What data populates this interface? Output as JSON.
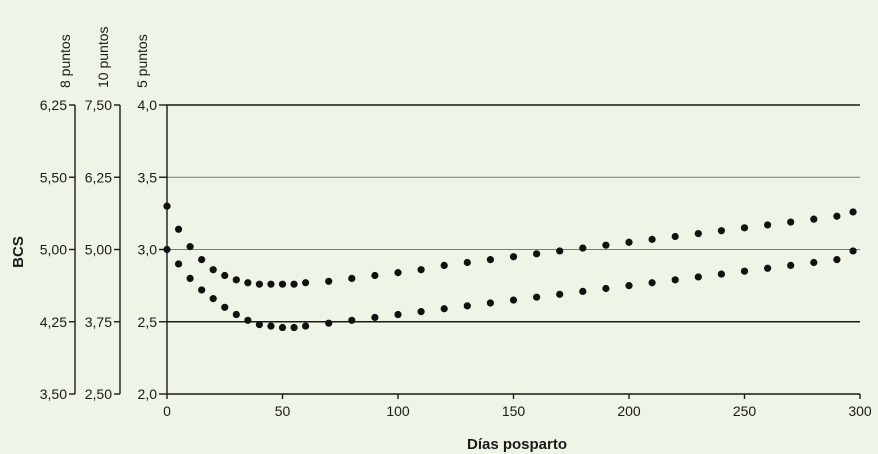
{
  "chart_data": {
    "type": "scatter",
    "xlabel": "Días posparto",
    "ylabel": "BCS",
    "xlim": [
      0,
      300
    ],
    "ylim": [
      2.0,
      4.0
    ],
    "x_ticks": [
      0,
      50,
      100,
      150,
      200,
      250,
      300
    ],
    "y_axes": [
      {
        "name": "5 puntos",
        "ticks": [
          "4,0",
          "3,5",
          "3,0",
          "2,5",
          "2,0"
        ]
      },
      {
        "name": "10 puntos",
        "ticks": [
          "7,50",
          "6,25",
          "5,00",
          "3,75",
          "2,50"
        ]
      },
      {
        "name": "8 puntos",
        "ticks": [
          "6,25",
          "5,50",
          "5,00",
          "4,25",
          "3,50"
        ]
      }
    ],
    "y_tick_values": [
      4.0,
      3.5,
      3.0,
      2.5,
      2.0
    ],
    "gridlines_y": [
      4.0,
      3.5,
      3.0,
      2.5
    ],
    "series": [
      {
        "x": [
          0,
          5,
          10,
          15,
          20,
          25,
          30,
          35,
          40,
          45,
          50,
          55,
          60,
          70,
          80,
          90,
          100,
          110,
          120,
          130,
          140,
          150,
          160,
          170,
          180,
          190,
          200,
          210,
          220,
          230,
          240,
          250,
          260,
          270,
          280,
          290,
          297
        ],
        "y": [
          3.3,
          3.14,
          3.02,
          2.93,
          2.86,
          2.82,
          2.79,
          2.77,
          2.76,
          2.76,
          2.76,
          2.76,
          2.77,
          2.78,
          2.8,
          2.82,
          2.84,
          2.86,
          2.89,
          2.91,
          2.93,
          2.95,
          2.97,
          2.99,
          3.01,
          3.03,
          3.05,
          3.07,
          3.09,
          3.11,
          3.13,
          3.15,
          3.17,
          3.19,
          3.21,
          3.23,
          3.26
        ]
      },
      {
        "x": [
          0,
          5,
          10,
          15,
          20,
          25,
          30,
          35,
          40,
          45,
          50,
          55,
          60,
          70,
          80,
          90,
          100,
          110,
          120,
          130,
          140,
          150,
          160,
          170,
          180,
          190,
          200,
          210,
          220,
          230,
          240,
          250,
          260,
          270,
          280,
          290,
          297
        ],
        "y": [
          3.0,
          2.9,
          2.8,
          2.72,
          2.66,
          2.6,
          2.55,
          2.51,
          2.48,
          2.47,
          2.46,
          2.46,
          2.47,
          2.49,
          2.51,
          2.53,
          2.55,
          2.57,
          2.59,
          2.61,
          2.63,
          2.65,
          2.67,
          2.69,
          2.71,
          2.73,
          2.75,
          2.77,
          2.79,
          2.81,
          2.83,
          2.85,
          2.87,
          2.89,
          2.91,
          2.93,
          2.99
        ]
      }
    ],
    "grid": true,
    "legend": "none"
  }
}
